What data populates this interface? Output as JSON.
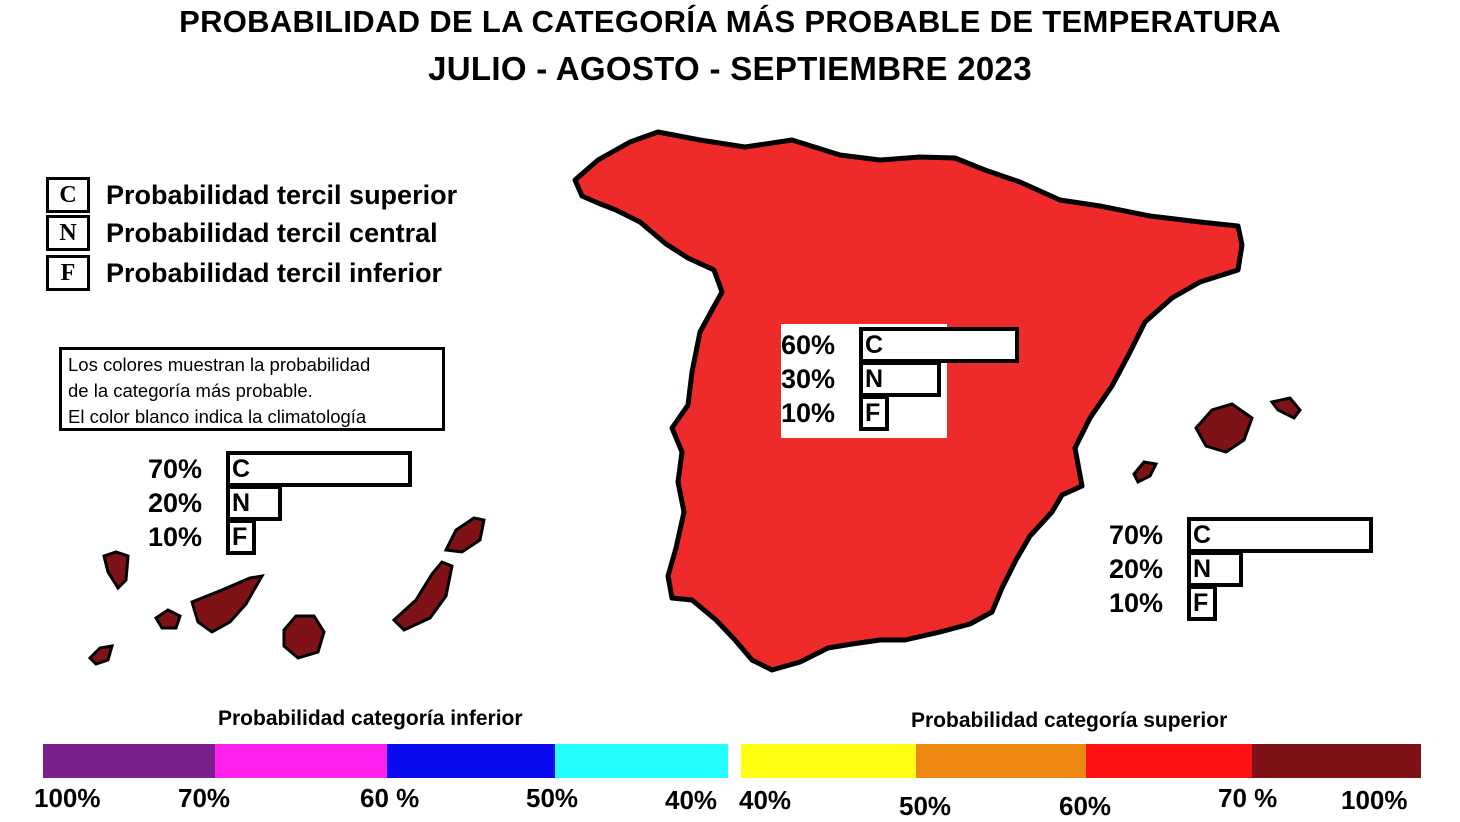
{
  "title": {
    "line1": "PROBABILIDAD DE LA CATEGORÍA MÁS PROBABLE DE  TEMPERATURA",
    "line2": "JULIO - AGOSTO - SEPTIEMBRE 2023"
  },
  "legend": [
    {
      "letter": "C",
      "text": "Probabilidad  tercil superior"
    },
    {
      "letter": "N",
      "text": "Probabilidad  tercil central"
    },
    {
      "letter": "F",
      "text": "Probabilidad  tercil inferior"
    }
  ],
  "note": [
    "Los colores muestran la probabilidad",
    "de la categoría más probable.",
    "El color blanco indica la climatología"
  ],
  "regions": {
    "peninsula": {
      "color": "#ee2a2a",
      "bars": [
        {
          "pct": "60%",
          "value": 60,
          "letter": "C"
        },
        {
          "pct": "30%",
          "value": 30,
          "letter": "N"
        },
        {
          "pct": "10%",
          "value": 10,
          "letter": "F"
        }
      ]
    },
    "canarias": {
      "color": "#7e1216",
      "bars": [
        {
          "pct": "70%",
          "value": 70,
          "letter": "C"
        },
        {
          "pct": "20%",
          "value": 20,
          "letter": "N"
        },
        {
          "pct": "10%",
          "value": 10,
          "letter": "F"
        }
      ]
    },
    "baleares": {
      "color": "#7e1216",
      "bars": [
        {
          "pct": "70%",
          "value": 70,
          "letter": "C"
        },
        {
          "pct": "20%",
          "value": 20,
          "letter": "N"
        },
        {
          "pct": "10%",
          "value": 10,
          "letter": "F"
        }
      ]
    }
  },
  "colorbar": {
    "inferior": {
      "label": "Probabilidad categoría inferior",
      "colors": [
        "#7b1f8e",
        "#ff22ee",
        "#0a0af0",
        "#22ffff"
      ],
      "ticks": [
        "100%",
        "70%",
        "60 %",
        "50%",
        "40%"
      ]
    },
    "superior": {
      "label": "Probabilidad categoría superior",
      "colors": [
        "#ffff11",
        "#ee8811",
        "#ff1111",
        "#7e1216"
      ],
      "ticks": [
        "40%",
        "50%",
        "60%",
        "70 %",
        "100%"
      ]
    }
  }
}
